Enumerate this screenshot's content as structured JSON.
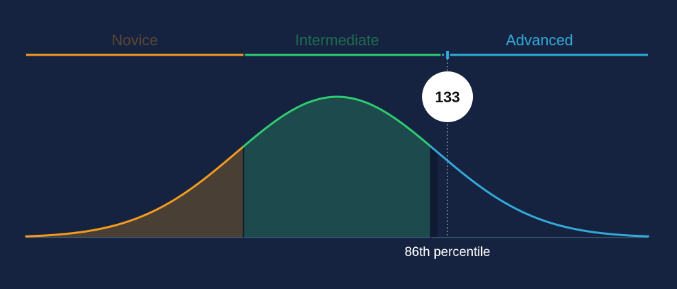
{
  "chart_data": {
    "type": "area",
    "distribution": "normal",
    "mean": 100,
    "sd": 30,
    "x_range": [
      7,
      193
    ],
    "bands": [
      {
        "label": "Novice",
        "from": 7,
        "to": 72,
        "line_color": "#f39c1f",
        "fill_color": "#4a3f34",
        "label_color": "#5b4634"
      },
      {
        "label": "Intermediate",
        "from": 72,
        "to": 128,
        "line_color": "#2ecc71",
        "fill_color": "#1d4a4c",
        "label_color": "#1f6b52"
      },
      {
        "label": "Advanced",
        "from": 128,
        "to": 193,
        "line_color": "#34a9d9",
        "fill_color": null,
        "label_color": "#34a9d9"
      }
    ],
    "marker": {
      "value": 133,
      "label": "133",
      "percentile_label": "86th percentile"
    }
  }
}
